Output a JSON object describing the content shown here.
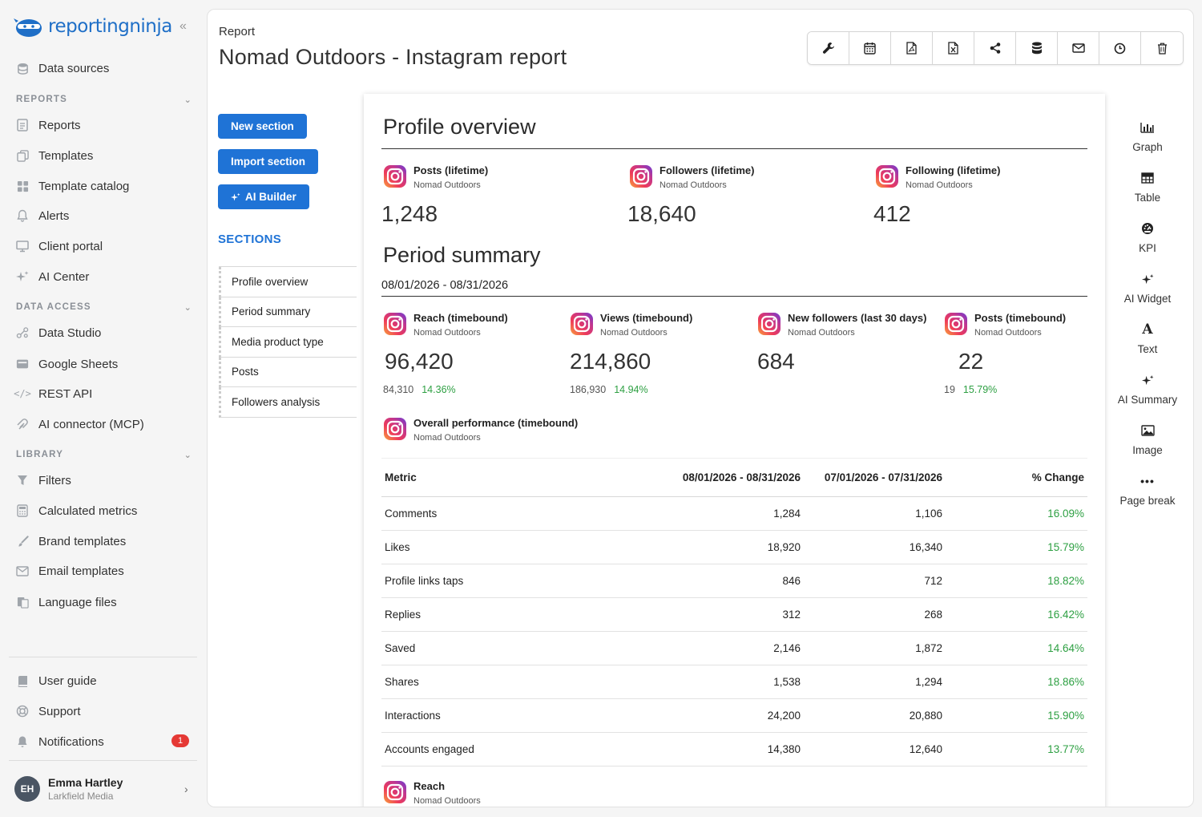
{
  "app": {
    "logo_text": "reportingninja"
  },
  "sidebar": {
    "top_items": [
      {
        "label": "Data sources",
        "icon": "database-icon"
      }
    ],
    "reports_section": {
      "title": "REPORTS",
      "items": [
        {
          "label": "Reports",
          "icon": "file-icon"
        },
        {
          "label": "Templates",
          "icon": "copy-icon"
        },
        {
          "label": "Template catalog",
          "icon": "grid-icon"
        },
        {
          "label": "Alerts",
          "icon": "bell-icon"
        },
        {
          "label": "Client portal",
          "icon": "monitor-icon"
        },
        {
          "label": "AI Center",
          "icon": "sparkle-icon"
        }
      ]
    },
    "data_access_section": {
      "title": "DATA ACCESS",
      "items": [
        {
          "label": "Data Studio",
          "icon": "nodes-icon"
        },
        {
          "label": "Google Sheets",
          "icon": "sheet-icon"
        },
        {
          "label": "REST API",
          "icon": "code-icon"
        },
        {
          "label": "AI connector (MCP)",
          "icon": "connector-icon"
        }
      ]
    },
    "library_section": {
      "title": "LIBRARY",
      "items": [
        {
          "label": "Filters",
          "icon": "filter-icon"
        },
        {
          "label": "Calculated metrics",
          "icon": "calculator-icon"
        },
        {
          "label": "Brand templates",
          "icon": "brush-icon"
        },
        {
          "label": "Email templates",
          "icon": "mail-icon"
        },
        {
          "label": "Language files",
          "icon": "language-icon"
        }
      ]
    },
    "bottom_items": [
      {
        "label": "User guide",
        "icon": "book-icon"
      },
      {
        "label": "Support",
        "icon": "support-icon"
      },
      {
        "label": "Notifications",
        "icon": "bell-icon",
        "badge": "1"
      }
    ],
    "user": {
      "initials": "EH",
      "name": "Emma Hartley",
      "org": "Larkfield Media"
    }
  },
  "header": {
    "breadcrumb": "Report",
    "title": "Nomad Outdoors - Instagram report",
    "toolbar": [
      "wrench-icon",
      "calendar-icon",
      "pdf-icon",
      "excel-icon",
      "share-icon",
      "database-icon",
      "mail-icon",
      "clock-icon",
      "trash-icon"
    ]
  },
  "builder": {
    "buttons": {
      "new_section": "New section",
      "import_section": "Import section",
      "ai_builder": "AI Builder"
    },
    "sections_title": "SECTIONS",
    "sections": [
      "Profile overview",
      "Period summary",
      "Media product type",
      "Posts",
      "Followers analysis"
    ]
  },
  "report": {
    "profile_overview": {
      "title": "Profile overview",
      "kpis": [
        {
          "title": "Posts (lifetime)",
          "source": "Nomad Outdoors",
          "value": "1,248"
        },
        {
          "title": "Followers (lifetime)",
          "source": "Nomad Outdoors",
          "value": "18,640"
        },
        {
          "title": "Following (lifetime)",
          "source": "Nomad Outdoors",
          "value": "412"
        }
      ]
    },
    "period_summary": {
      "title": "Period summary",
      "date_range": "08/01/2026 - 08/31/2026",
      "kpis": [
        {
          "title": "Reach (timebound)",
          "source": "Nomad Outdoors",
          "value": "96,420",
          "previous": "84,310",
          "change": "14.36%"
        },
        {
          "title": "Views (timebound)",
          "source": "Nomad Outdoors",
          "value": "214,860",
          "previous": "186,930",
          "change": "14.94%"
        },
        {
          "title": "New followers (last 30 days)",
          "source": "Nomad Outdoors",
          "value": "684",
          "previous": "",
          "change": ""
        },
        {
          "title": "Posts (timebound)",
          "source": "Nomad Outdoors",
          "value": "22",
          "previous": "19",
          "change": "15.79%"
        }
      ],
      "performance": {
        "title": "Overall performance (timebound)",
        "source": "Nomad Outdoors",
        "columns": [
          "Metric",
          "08/01/2026 - 08/31/2026",
          "07/01/2026 - 07/31/2026",
          "% Change"
        ],
        "rows": [
          [
            "Comments",
            "1,284",
            "1,106",
            "16.09%"
          ],
          [
            "Likes",
            "18,920",
            "16,340",
            "15.79%"
          ],
          [
            "Profile links taps",
            "846",
            "712",
            "18.82%"
          ],
          [
            "Replies",
            "312",
            "268",
            "16.42%"
          ],
          [
            "Saved",
            "2,146",
            "1,872",
            "14.64%"
          ],
          [
            "Shares",
            "1,538",
            "1,294",
            "18.86%"
          ],
          [
            "Interactions",
            "24,200",
            "20,880",
            "15.90%"
          ],
          [
            "Accounts engaged",
            "14,380",
            "12,640",
            "13.77%"
          ]
        ]
      },
      "next_widget": {
        "title": "Reach",
        "source": "Nomad Outdoors"
      }
    }
  },
  "palette": [
    {
      "label": "Graph",
      "icon": "bar-chart-icon"
    },
    {
      "label": "Table",
      "icon": "table-icon"
    },
    {
      "label": "KPI",
      "icon": "gauge-icon"
    },
    {
      "label": "AI Widget",
      "icon": "sparkle-icon"
    },
    {
      "label": "Text",
      "icon": "text-icon"
    },
    {
      "label": "AI Summary",
      "icon": "sparkle-icon"
    },
    {
      "label": "Image",
      "icon": "image-icon"
    },
    {
      "label": "Page break",
      "icon": "dots-icon"
    }
  ],
  "colors": {
    "accent": "#1f73d6",
    "positive": "#2ea043",
    "badge": "#e53935"
  }
}
